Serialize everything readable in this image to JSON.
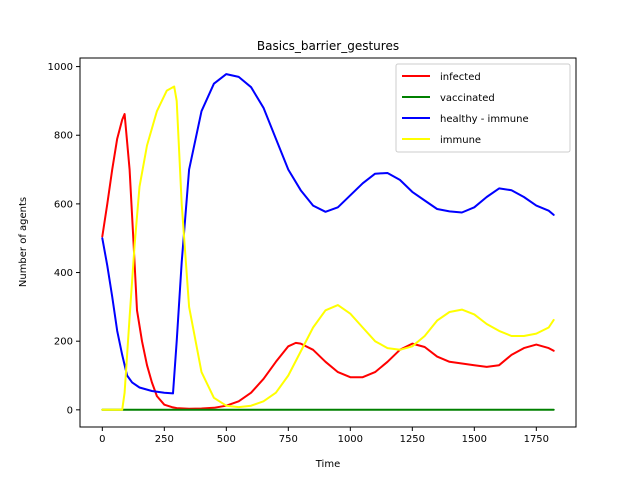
{
  "chart_data": {
    "type": "line",
    "title": "Basics_barrier_gestures",
    "xlabel": "Time",
    "ylabel": "Number of agents",
    "xlim": [
      -90,
      1910
    ],
    "ylim": [
      -50,
      1025
    ],
    "xticks": [
      0,
      250,
      500,
      750,
      1000,
      1250,
      1500,
      1750
    ],
    "yticks": [
      0,
      200,
      400,
      600,
      800,
      1000
    ],
    "grid": false,
    "legend_position": "top-right",
    "series": [
      {
        "name": "infected",
        "color": "#ff0000",
        "x": [
          0,
          20,
          40,
          60,
          80,
          90,
          110,
          125,
          140,
          160,
          180,
          200,
          220,
          250,
          280,
          300,
          350,
          400,
          450,
          500,
          550,
          600,
          650,
          700,
          750,
          780,
          800,
          850,
          900,
          950,
          1000,
          1050,
          1100,
          1150,
          1200,
          1250,
          1300,
          1350,
          1400,
          1450,
          1500,
          1550,
          1600,
          1650,
          1700,
          1750,
          1800,
          1820
        ],
        "y": [
          505,
          600,
          700,
          790,
          845,
          862,
          700,
          500,
          290,
          200,
          130,
          80,
          40,
          15,
          8,
          5,
          3,
          4,
          6,
          12,
          25,
          50,
          90,
          140,
          185,
          195,
          193,
          175,
          140,
          110,
          95,
          95,
          110,
          140,
          175,
          193,
          183,
          155,
          140,
          135,
          130,
          125,
          130,
          160,
          180,
          190,
          180,
          172
        ]
      },
      {
        "name": "vaccinated",
        "color": "#008000",
        "x": [
          0,
          1820
        ],
        "y": [
          0,
          0
        ]
      },
      {
        "name": "healthy - immune",
        "color": "#0000ff",
        "x": [
          0,
          20,
          40,
          60,
          80,
          100,
          120,
          150,
          200,
          250,
          285,
          300,
          320,
          350,
          400,
          450,
          500,
          550,
          600,
          650,
          700,
          750,
          800,
          850,
          900,
          950,
          1000,
          1050,
          1100,
          1150,
          1200,
          1250,
          1300,
          1350,
          1400,
          1450,
          1500,
          1550,
          1600,
          1650,
          1700,
          1750,
          1800,
          1820
        ],
        "y": [
          500,
          420,
          330,
          230,
          160,
          100,
          80,
          65,
          55,
          50,
          48,
          200,
          430,
          700,
          870,
          950,
          978,
          970,
          940,
          880,
          790,
          700,
          640,
          595,
          577,
          590,
          625,
          660,
          688,
          690,
          670,
          635,
          610,
          585,
          578,
          575,
          590,
          620,
          645,
          640,
          620,
          595,
          580,
          568
        ]
      },
      {
        "name": "immune",
        "color": "#ffff00",
        "x": [
          0,
          40,
          80,
          90,
          110,
          130,
          150,
          180,
          220,
          260,
          290,
          300,
          320,
          350,
          400,
          450,
          500,
          550,
          600,
          650,
          700,
          750,
          800,
          850,
          900,
          950,
          1000,
          1050,
          1100,
          1150,
          1200,
          1250,
          1300,
          1350,
          1400,
          1450,
          1500,
          1550,
          1600,
          1650,
          1700,
          1750,
          1800,
          1820
        ],
        "y": [
          0,
          0,
          0,
          50,
          270,
          480,
          650,
          770,
          870,
          930,
          942,
          900,
          600,
          300,
          110,
          35,
          12,
          8,
          12,
          25,
          50,
          100,
          170,
          240,
          290,
          305,
          280,
          240,
          200,
          180,
          175,
          185,
          215,
          260,
          285,
          292,
          278,
          250,
          230,
          215,
          215,
          222,
          240,
          262
        ]
      }
    ]
  }
}
